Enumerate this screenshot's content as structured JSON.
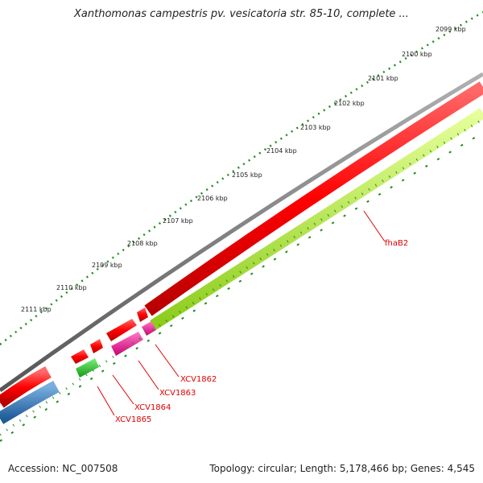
{
  "title": "Xanthomonas campestris pv. vesicatoria str. 85-10, complete ...",
  "footer": {
    "accession": "Accession: NC_007508",
    "summary": "Topology: circular; Length: 5,178,466 bp; Genes: 4,545"
  },
  "ticks": [
    {
      "label": "2099 kbp"
    },
    {
      "label": "2100 kbp"
    },
    {
      "label": "2101 kbp"
    },
    {
      "label": "2102 kbp"
    },
    {
      "label": "2103 kbp"
    },
    {
      "label": "2104 kbp"
    },
    {
      "label": "2105 kbp"
    },
    {
      "label": "2106 kbp"
    },
    {
      "label": "2107 kbp"
    },
    {
      "label": "2108 kbp"
    },
    {
      "label": "2109 kbp"
    },
    {
      "label": "2110 kbp"
    },
    {
      "label": "2111 kbp"
    }
  ],
  "genes": [
    {
      "label": "fhaB2"
    },
    {
      "label": "XCV1862"
    },
    {
      "label": "XCV1863"
    },
    {
      "label": "XCV1864"
    },
    {
      "label": "XCV1865"
    }
  ],
  "colors": {
    "backbone": "#7a7a7a",
    "cds_forward": "#ff0000",
    "cds_reverse": "#1f6fb5",
    "lime_feature": "#b5f542",
    "green_feature": "#2ecc40",
    "magenta_feature": "#ff1493",
    "tick_green": "#1e8c1e",
    "label_red": "#e00000"
  }
}
